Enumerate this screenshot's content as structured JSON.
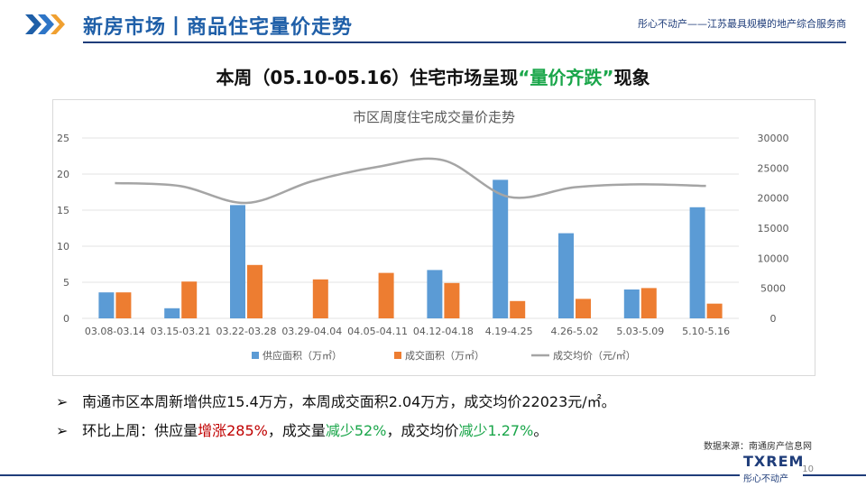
{
  "header": {
    "title": "新房市场丨商品住宅量价走势",
    "tagline": "彤心不动产——江苏最具规模的地产综合服务商"
  },
  "subtitle": {
    "prefix": "本周（05.10-05.16）住宅市场呈现",
    "highlight": "“量价齐跌”",
    "suffix": "现象"
  },
  "chart_data": {
    "type": "bar",
    "title": "市区周度住宅成交量价走势",
    "categories": [
      "03.08-03.14",
      "03.15-03.21",
      "03.22-03.28",
      "03.29-04.04",
      "04.05-04.11",
      "04.12-04.18",
      "4.19-4.25",
      "4.26-5.02",
      "5.03-5.09",
      "5.10-5.16"
    ],
    "series": [
      {
        "name": "供应面积（万㎡）",
        "axis": "left",
        "type": "bar",
        "color": "#5b9bd5",
        "values": [
          3.6,
          1.4,
          15.7,
          0,
          0,
          6.7,
          19.2,
          11.8,
          4.0,
          15.4
        ]
      },
      {
        "name": "成交面积（万㎡）",
        "axis": "left",
        "type": "bar",
        "color": "#ed7d31",
        "values": [
          3.6,
          5.1,
          7.4,
          5.4,
          6.3,
          4.9,
          2.4,
          2.7,
          4.2,
          2.04
        ]
      },
      {
        "name": "成交均价（元/㎡）",
        "axis": "right",
        "type": "line",
        "color": "#a5a5a5",
        "values": [
          22500,
          22000,
          19200,
          22800,
          25200,
          26300,
          20200,
          21800,
          22300,
          22023
        ]
      }
    ],
    "ylim_left": [
      0,
      25
    ],
    "yticks_left": [
      "0",
      "5",
      "10",
      "15",
      "20",
      "25"
    ],
    "ylim_right": [
      0,
      30000
    ],
    "yticks_right": [
      "0",
      "5000",
      "10000",
      "15000",
      "20000",
      "25000",
      "30000"
    ],
    "grid": true,
    "legend": "bottom"
  },
  "bullets": [
    {
      "parts": [
        {
          "text": "南通市区本周新增供应15.4万方，本周成交面积2.04万方，成交均价22023元/㎡。",
          "color": ""
        }
      ]
    },
    {
      "parts": [
        {
          "text": "环比上周：供应量",
          "color": ""
        },
        {
          "text": "增涨285%",
          "color": "red"
        },
        {
          "text": "，成交量",
          "color": ""
        },
        {
          "text": "减少52%",
          "color": "green"
        },
        {
          "text": "，成交均价",
          "color": ""
        },
        {
          "text": "减少1.27%",
          "color": "green"
        },
        {
          "text": "。",
          "color": ""
        }
      ]
    }
  ],
  "bullet_marker": "➢",
  "source": "数据来源：南通房产信息网",
  "footer": {
    "logo": "TXREM",
    "logo_cn": "彤心不动产",
    "page": "10"
  }
}
